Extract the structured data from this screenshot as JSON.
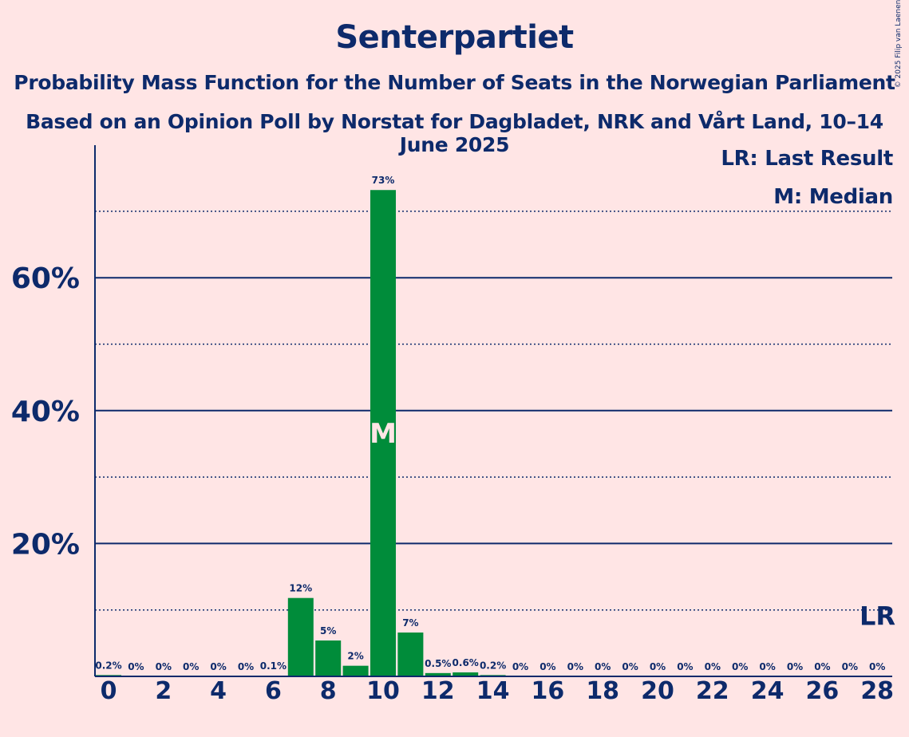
{
  "chart_data": {
    "type": "bar",
    "title": "Senterpartiet",
    "subtitle": "Probability Mass Function for the Number of Seats in the Norwegian Parliament",
    "subtitle2": "Based on an Opinion Poll by Norstat for Dagbladet, NRK and Vårt Land, 10–14 June 2025",
    "copyright": "© 2025 Filip van Laenen",
    "x": [
      0,
      1,
      2,
      3,
      4,
      5,
      6,
      7,
      8,
      9,
      10,
      11,
      12,
      13,
      14,
      15,
      16,
      17,
      18,
      19,
      20,
      21,
      22,
      23,
      24,
      25,
      26,
      27,
      28
    ],
    "values": [
      0.2,
      0,
      0,
      0,
      0,
      0,
      0.1,
      11.8,
      5.4,
      1.6,
      73.2,
      6.6,
      0.5,
      0.6,
      0.2,
      0,
      0,
      0,
      0,
      0,
      0,
      0,
      0,
      0,
      0,
      0,
      0,
      0,
      0
    ],
    "labels": [
      "0.2%",
      "0%",
      "0%",
      "0%",
      "0%",
      "0%",
      "0.1%",
      "12%",
      "5%",
      "2%",
      "73%",
      "7%",
      "0.5%",
      "0.6%",
      "0.2%",
      "0%",
      "0%",
      "0%",
      "0%",
      "0%",
      "0%",
      "0%",
      "0%",
      "0%",
      "0%",
      "0%",
      "0%",
      "0%",
      "0%"
    ],
    "x_ticks": [
      "0",
      "2",
      "4",
      "6",
      "8",
      "10",
      "12",
      "14",
      "16",
      "18",
      "20",
      "22",
      "24",
      "26",
      "28"
    ],
    "y_ticks": [
      "20%",
      "40%",
      "60%"
    ],
    "y_tick_values": [
      20,
      40,
      60
    ],
    "y_dotted_values": [
      10,
      30,
      50,
      70
    ],
    "ylim": [
      0,
      80
    ],
    "median_seat": 10,
    "median_label": "M",
    "last_result_seat": 28,
    "last_result_label": "LR",
    "legend": [
      "LR: Last Result",
      "M: Median"
    ],
    "bar_color": "#008c3a",
    "axis_color": "#0d2a6b",
    "background": "#ffe5e5"
  }
}
